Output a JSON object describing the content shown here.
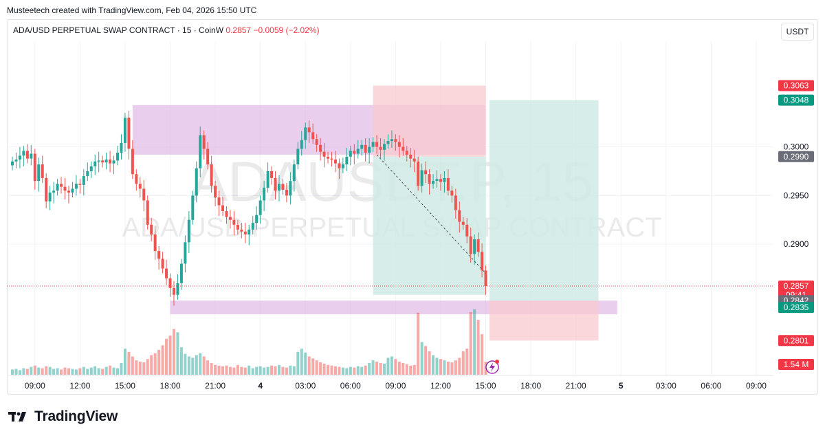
{
  "credit": "Musteetech created with TradingView.com, Feb 04, 2026 15:50 UTC",
  "header": {
    "symbol": "ADA/USD PERPETUAL SWAP CONTRACT · 15 · CoinW",
    "last": "0.2857",
    "change": "−0.0059 (−2.02%)"
  },
  "currency_button": "USDT",
  "watermark": {
    "ticker": "ADAUSDT.P, 15",
    "name": "ADA/USD PERPETUAL SWAP CONTRACT"
  },
  "brand": {
    "name": "TradingView"
  },
  "colors": {
    "up": "#26a69a",
    "down": "#ef5350",
    "purple_zone": "#e1bee7",
    "stop_zone": "#f7c9cf",
    "target_zone": "#cfeae5"
  },
  "chart_data": {
    "type": "candlestick",
    "interval": "15",
    "price_range": [
      0.278,
      0.3105
    ],
    "x_range": [
      0,
      150
    ],
    "price_ticks": [
      "0.3000",
      "0.2950",
      "0.2900"
    ],
    "time_ticks": [
      {
        "x": 6,
        "label": "09:00"
      },
      {
        "x": 18,
        "label": "12:00"
      },
      {
        "x": 30,
        "label": "15:00"
      },
      {
        "x": 42,
        "label": "18:00"
      },
      {
        "x": 54,
        "label": "21:00"
      },
      {
        "x": 66,
        "label": "4"
      },
      {
        "x": 78,
        "label": "03:00"
      },
      {
        "x": 90,
        "label": "06:00"
      },
      {
        "x": 102,
        "label": "09:00"
      },
      {
        "x": 114,
        "label": "12:00"
      },
      {
        "x": 126,
        "label": "15:00"
      },
      {
        "x": 138,
        "label": "18:00"
      },
      {
        "x": 150,
        "label": "21:00"
      },
      {
        "x": 162,
        "label": "5"
      },
      {
        "x": 174,
        "label": "03:00"
      },
      {
        "x": 186,
        "label": "06:00"
      },
      {
        "x": 198,
        "label": "09:00"
      }
    ],
    "price_labels": [
      {
        "value": 0.3063,
        "text": "0.3063",
        "color": "#f23645"
      },
      {
        "value": 0.3048,
        "text": "0.3048",
        "color": "#089981"
      },
      {
        "value": 0.299,
        "text": "0.2990",
        "color": "#6a6d78"
      },
      {
        "value": 0.2857,
        "text": "0.2857",
        "sub": "09:41",
        "color": "#f23645"
      },
      {
        "value": 0.2842,
        "text": "0.2842",
        "color": "#6a6d78"
      },
      {
        "value": 0.2835,
        "text": "0.2835",
        "color": "#089981"
      },
      {
        "value": 0.2801,
        "text": "0.2801",
        "color": "#f23645"
      }
    ],
    "volume_label": "1.54 M",
    "closes": [
      0.2985,
      0.2987,
      0.2991,
      0.2996,
      0.2988,
      0.2993,
      0.2965,
      0.2982,
      0.2968,
      0.2944,
      0.2953,
      0.2955,
      0.2962,
      0.2959,
      0.2955,
      0.2953,
      0.2957,
      0.2962,
      0.2961,
      0.297,
      0.2975,
      0.298,
      0.2985,
      0.2986,
      0.2984,
      0.2987,
      0.2983,
      0.2986,
      0.2994,
      0.3004,
      0.303,
      0.2998,
      0.2972,
      0.2962,
      0.2957,
      0.2945,
      0.292,
      0.291,
      0.2893,
      0.2885,
      0.2875,
      0.2865,
      0.2855,
      0.2848,
      0.286,
      0.288,
      0.2902,
      0.2925,
      0.295,
      0.2978,
      0.3012,
      0.2998,
      0.2982,
      0.296,
      0.2948,
      0.294,
      0.2934,
      0.2928,
      0.2925,
      0.292,
      0.2915,
      0.2913,
      0.291,
      0.2915,
      0.2922,
      0.293,
      0.2945,
      0.2958,
      0.2975,
      0.2968,
      0.2955,
      0.2962,
      0.2956,
      0.295,
      0.2965,
      0.2982,
      0.2998,
      0.3007,
      0.302,
      0.3015,
      0.3008,
      0.3002,
      0.2995,
      0.299,
      0.2988,
      0.2987,
      0.2983,
      0.2978,
      0.2982,
      0.299,
      0.2996,
      0.2993,
      0.2998,
      0.3002,
      0.2994,
      0.3,
      0.3005,
      0.3,
      0.2997,
      0.3003,
      0.3006,
      0.3008,
      0.3005,
      0.3,
      0.2996,
      0.2992,
      0.2988,
      0.2985,
      0.296,
      0.2976,
      0.2972,
      0.2962,
      0.2965,
      0.2967,
      0.2964,
      0.2968,
      0.2955,
      0.295,
      0.2935,
      0.2923,
      0.292,
      0.2908,
      0.289,
      0.2905,
      0.2892,
      0.2873,
      0.2857
    ],
    "volumes": [
      0.08,
      0.09,
      0.07,
      0.1,
      0.09,
      0.12,
      0.14,
      0.11,
      0.1,
      0.13,
      0.12,
      0.09,
      0.1,
      0.08,
      0.11,
      0.1,
      0.09,
      0.08,
      0.1,
      0.12,
      0.09,
      0.11,
      0.13,
      0.1,
      0.09,
      0.12,
      0.14,
      0.11,
      0.1,
      0.18,
      0.4,
      0.35,
      0.28,
      0.22,
      0.2,
      0.19,
      0.24,
      0.3,
      0.33,
      0.38,
      0.45,
      0.55,
      0.6,
      0.7,
      0.65,
      0.42,
      0.32,
      0.28,
      0.26,
      0.3,
      0.33,
      0.28,
      0.22,
      0.18,
      0.15,
      0.14,
      0.13,
      0.14,
      0.12,
      0.11,
      0.15,
      0.12,
      0.11,
      0.14,
      0.1,
      0.12,
      0.13,
      0.11,
      0.12,
      0.14,
      0.13,
      0.15,
      0.12,
      0.11,
      0.14,
      0.13,
      0.35,
      0.4,
      0.34,
      0.28,
      0.25,
      0.22,
      0.19,
      0.17,
      0.15,
      0.14,
      0.13,
      0.12,
      0.11,
      0.1,
      0.12,
      0.11,
      0.13,
      0.12,
      0.14,
      0.18,
      0.22,
      0.2,
      0.18,
      0.17,
      0.26,
      0.28,
      0.24,
      0.2,
      0.18,
      0.16,
      0.14,
      0.15,
      0.95,
      0.5,
      0.44,
      0.36,
      0.3,
      0.26,
      0.24,
      0.22,
      0.2,
      0.19,
      0.22,
      0.26,
      0.36,
      0.4,
      0.96,
      1.0,
      0.84,
      0.62,
      0.2
    ],
    "zones": [
      {
        "kind": "purple",
        "x1": 32,
        "x2": 126,
        "top": 0.3043,
        "bottom": 0.2992
      },
      {
        "kind": "purple",
        "x1": 42,
        "x2": 161,
        "top": 0.2842,
        "bottom": 0.2828
      },
      {
        "kind": "stop",
        "x1": 96,
        "x2": 126,
        "top": 0.3063,
        "bottom": 0.299
      },
      {
        "kind": "target",
        "x1": 96,
        "x2": 126,
        "top": 0.299,
        "bottom": 0.2848
      },
      {
        "kind": "target",
        "x1": 127,
        "x2": 156,
        "top": 0.3048,
        "bottom": 0.2842
      },
      {
        "kind": "stop",
        "x1": 127,
        "x2": 156,
        "top": 0.2842,
        "bottom": 0.2801
      }
    ]
  }
}
